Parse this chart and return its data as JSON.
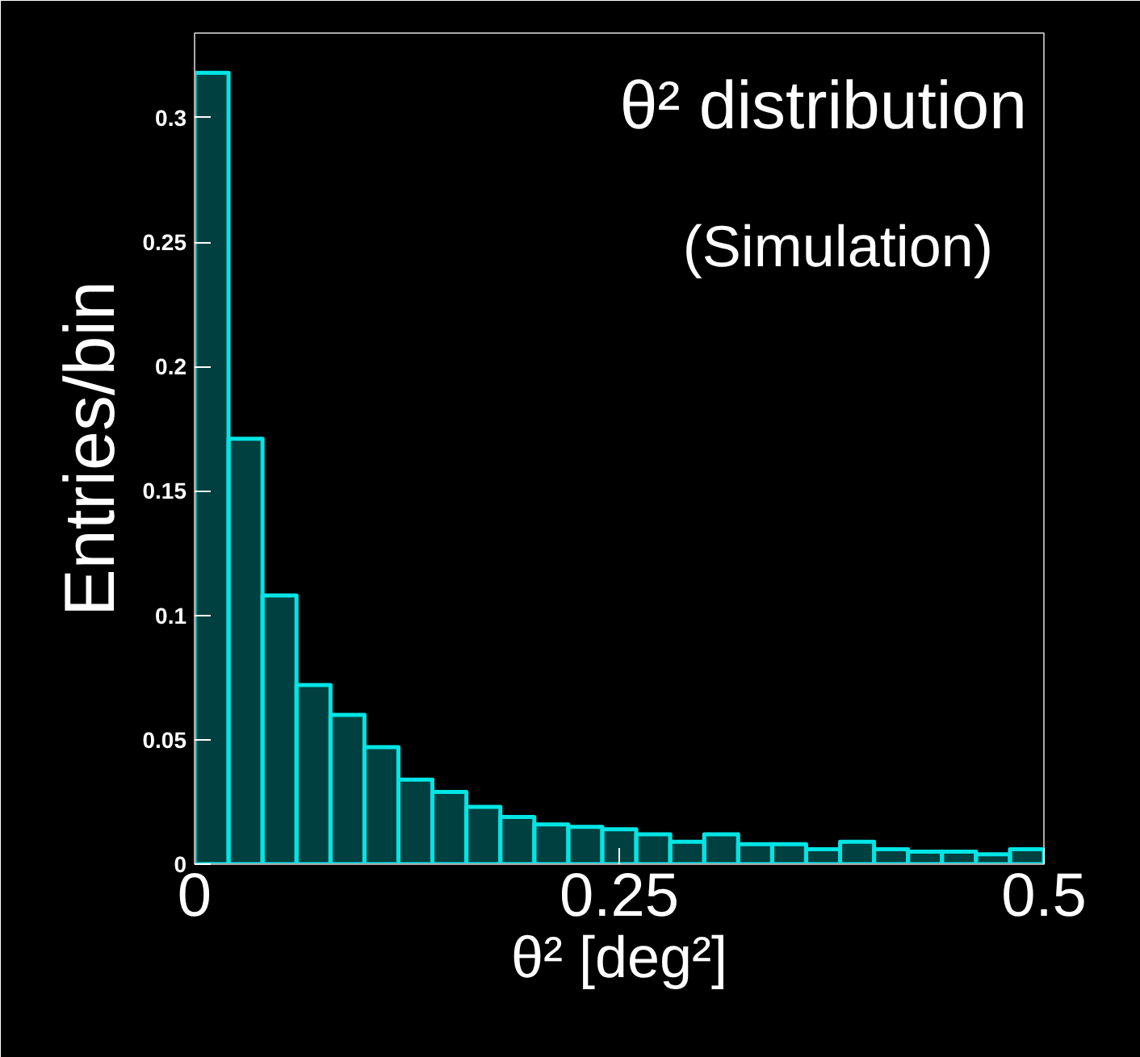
{
  "chart_data": {
    "type": "histogram",
    "title": "θ² distribution",
    "annotations": [
      "(Simulation)"
    ],
    "xlabel": "θ² [deg²]",
    "ylabel": "Entries/bin",
    "bins": [
      0,
      0.02,
      0.04,
      0.06,
      0.08,
      0.1,
      0.12,
      0.14,
      0.16,
      0.18,
      0.2,
      0.22,
      0.24,
      0.26,
      0.28,
      0.3,
      0.32,
      0.34,
      0.36,
      0.38,
      0.4,
      0.42,
      0.44,
      0.46,
      0.48,
      0.5
    ],
    "values": [
      0.318,
      0.171,
      0.108,
      0.072,
      0.06,
      0.047,
      0.034,
      0.029,
      0.023,
      0.019,
      0.016,
      0.015,
      0.014,
      0.012,
      0.009,
      0.012,
      0.008,
      0.008,
      0.006,
      0.009,
      0.006,
      0.005,
      0.005,
      0.004,
      0.006
    ],
    "color": "#00e5e5",
    "xlim": [
      0,
      0.5
    ],
    "ylim": [
      0,
      0.334
    ],
    "xticks": [
      0,
      0.25,
      0.5
    ],
    "yticks": [
      0,
      0.05,
      0.1,
      0.15,
      0.2,
      0.25,
      0.3
    ],
    "grid": false
  }
}
